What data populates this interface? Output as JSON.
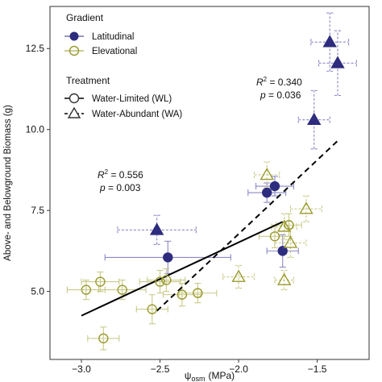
{
  "chart_data": {
    "type": "scatter",
    "xlabel_symbol": "ψ",
    "xlabel_sub": "osm",
    "xlabel_unit": "(MPa)",
    "ylabel": "Above- and Belowground Biomass (g)",
    "xlim": [
      -3.2,
      -1.17
    ],
    "ylim": [
      2.9,
      13.8
    ],
    "xticks": [
      -3.0,
      -2.5,
      -2.0,
      -1.5
    ],
    "xtick_labels": [
      "−3.0",
      "−2.5",
      "−2.0",
      "−1.5"
    ],
    "yticks": [
      5.0,
      7.5,
      10.0,
      12.5
    ],
    "ytick_labels": [
      "5.0",
      "7.5",
      "10.0",
      "12.5"
    ],
    "colors": {
      "latitudinal": "#2e2c7e",
      "elevational": "#9a9a2e",
      "lat_err": "#8b88c4",
      "elev_err": "#c9c98a"
    },
    "legend": {
      "gradient_title": "Gradient",
      "gradient_items": [
        "Latitudinal",
        "Elevational"
      ],
      "treatment_title": "Treatment",
      "treatment_items": [
        "Water-Limited (WL)",
        "Water-Abundant (WA)"
      ]
    },
    "annotations": {
      "wl": {
        "r2_label": "R",
        "r2_value": " = 0.556",
        "p_label": "p",
        "p_value": " = 0.003"
      },
      "wa": {
        "r2_label": "R",
        "r2_value": " = 0.340",
        "p_label": "p",
        "p_value": " = 0.036"
      }
    },
    "series": [
      {
        "gradient": "Latitudinal",
        "treatment": "Water-Limited (WL)",
        "points": [
          {
            "x": -2.45,
            "y": 6.05,
            "xerr": 0.4,
            "yerr": 0.5
          },
          {
            "x": -1.82,
            "y": 8.05,
            "xerr": 0.12,
            "yerr": 0.3
          },
          {
            "x": -1.77,
            "y": 8.25,
            "xerr": 0.12,
            "yerr": 0.3
          },
          {
            "x": -1.72,
            "y": 6.25,
            "xerr": 0.1,
            "yerr": 0.5
          }
        ]
      },
      {
        "gradient": "Latitudinal",
        "treatment": "Water-Abundant (WA)",
        "points": [
          {
            "x": -2.52,
            "y": 6.9,
            "xerr": 0.25,
            "yerr": 0.45
          },
          {
            "x": -1.52,
            "y": 10.3,
            "xerr": 0.1,
            "yerr": 0.9
          },
          {
            "x": -1.42,
            "y": 12.7,
            "xerr": 0.12,
            "yerr": 0.9
          },
          {
            "x": -1.37,
            "y": 12.05,
            "xerr": 0.12,
            "yerr": 1.0
          }
        ]
      },
      {
        "gradient": "Elevational",
        "treatment": "Water-Limited (WL)",
        "points": [
          {
            "x": -2.97,
            "y": 5.05,
            "xerr": 0.12,
            "yerr": 0.3
          },
          {
            "x": -2.88,
            "y": 5.3,
            "xerr": 0.12,
            "yerr": 0.3
          },
          {
            "x": -2.86,
            "y": 3.55,
            "xerr": 0.1,
            "yerr": 0.35
          },
          {
            "x": -2.74,
            "y": 5.05,
            "xerr": 0.15,
            "yerr": 0.3
          },
          {
            "x": -2.55,
            "y": 4.45,
            "xerr": 0.1,
            "yerr": 0.45
          },
          {
            "x": -2.5,
            "y": 5.3,
            "xerr": 0.13,
            "yerr": 0.35
          },
          {
            "x": -2.46,
            "y": 5.35,
            "xerr": 0.12,
            "yerr": 0.35
          },
          {
            "x": -2.36,
            "y": 4.9,
            "xerr": 0.12,
            "yerr": 0.35
          },
          {
            "x": -2.26,
            "y": 4.95,
            "xerr": 0.12,
            "yerr": 0.3
          },
          {
            "x": -1.77,
            "y": 6.7,
            "xerr": 0.1,
            "yerr": 0.35
          },
          {
            "x": -1.68,
            "y": 7.05,
            "xerr": 0.08,
            "yerr": 0.35
          }
        ]
      },
      {
        "gradient": "Elevational",
        "treatment": "Water-Abundant (WA)",
        "points": [
          {
            "x": -1.82,
            "y": 8.6,
            "xerr": 0.08,
            "yerr": 0.4
          },
          {
            "x": -1.71,
            "y": 7.0,
            "xerr": 0.08,
            "yerr": 0.4
          },
          {
            "x": -1.67,
            "y": 6.5,
            "xerr": 0.1,
            "yerr": 0.45
          },
          {
            "x": -1.71,
            "y": 5.35,
            "xerr": 0.06,
            "yerr": 0.3
          },
          {
            "x": -1.57,
            "y": 7.55,
            "xerr": 0.1,
            "yerr": 0.4
          },
          {
            "x": -2.0,
            "y": 5.45,
            "xerr": 0.1,
            "yerr": 0.35
          }
        ]
      }
    ],
    "fit_lines": [
      {
        "treatment": "Water-Limited (WL)",
        "x": [
          -3.0,
          -1.72
        ],
        "y": [
          4.25,
          7.15
        ],
        "style": "solid"
      },
      {
        "treatment": "Water-Abundant (WA)",
        "x": [
          -2.52,
          -1.37
        ],
        "y": [
          4.4,
          9.65
        ],
        "style": "dashed"
      }
    ]
  }
}
